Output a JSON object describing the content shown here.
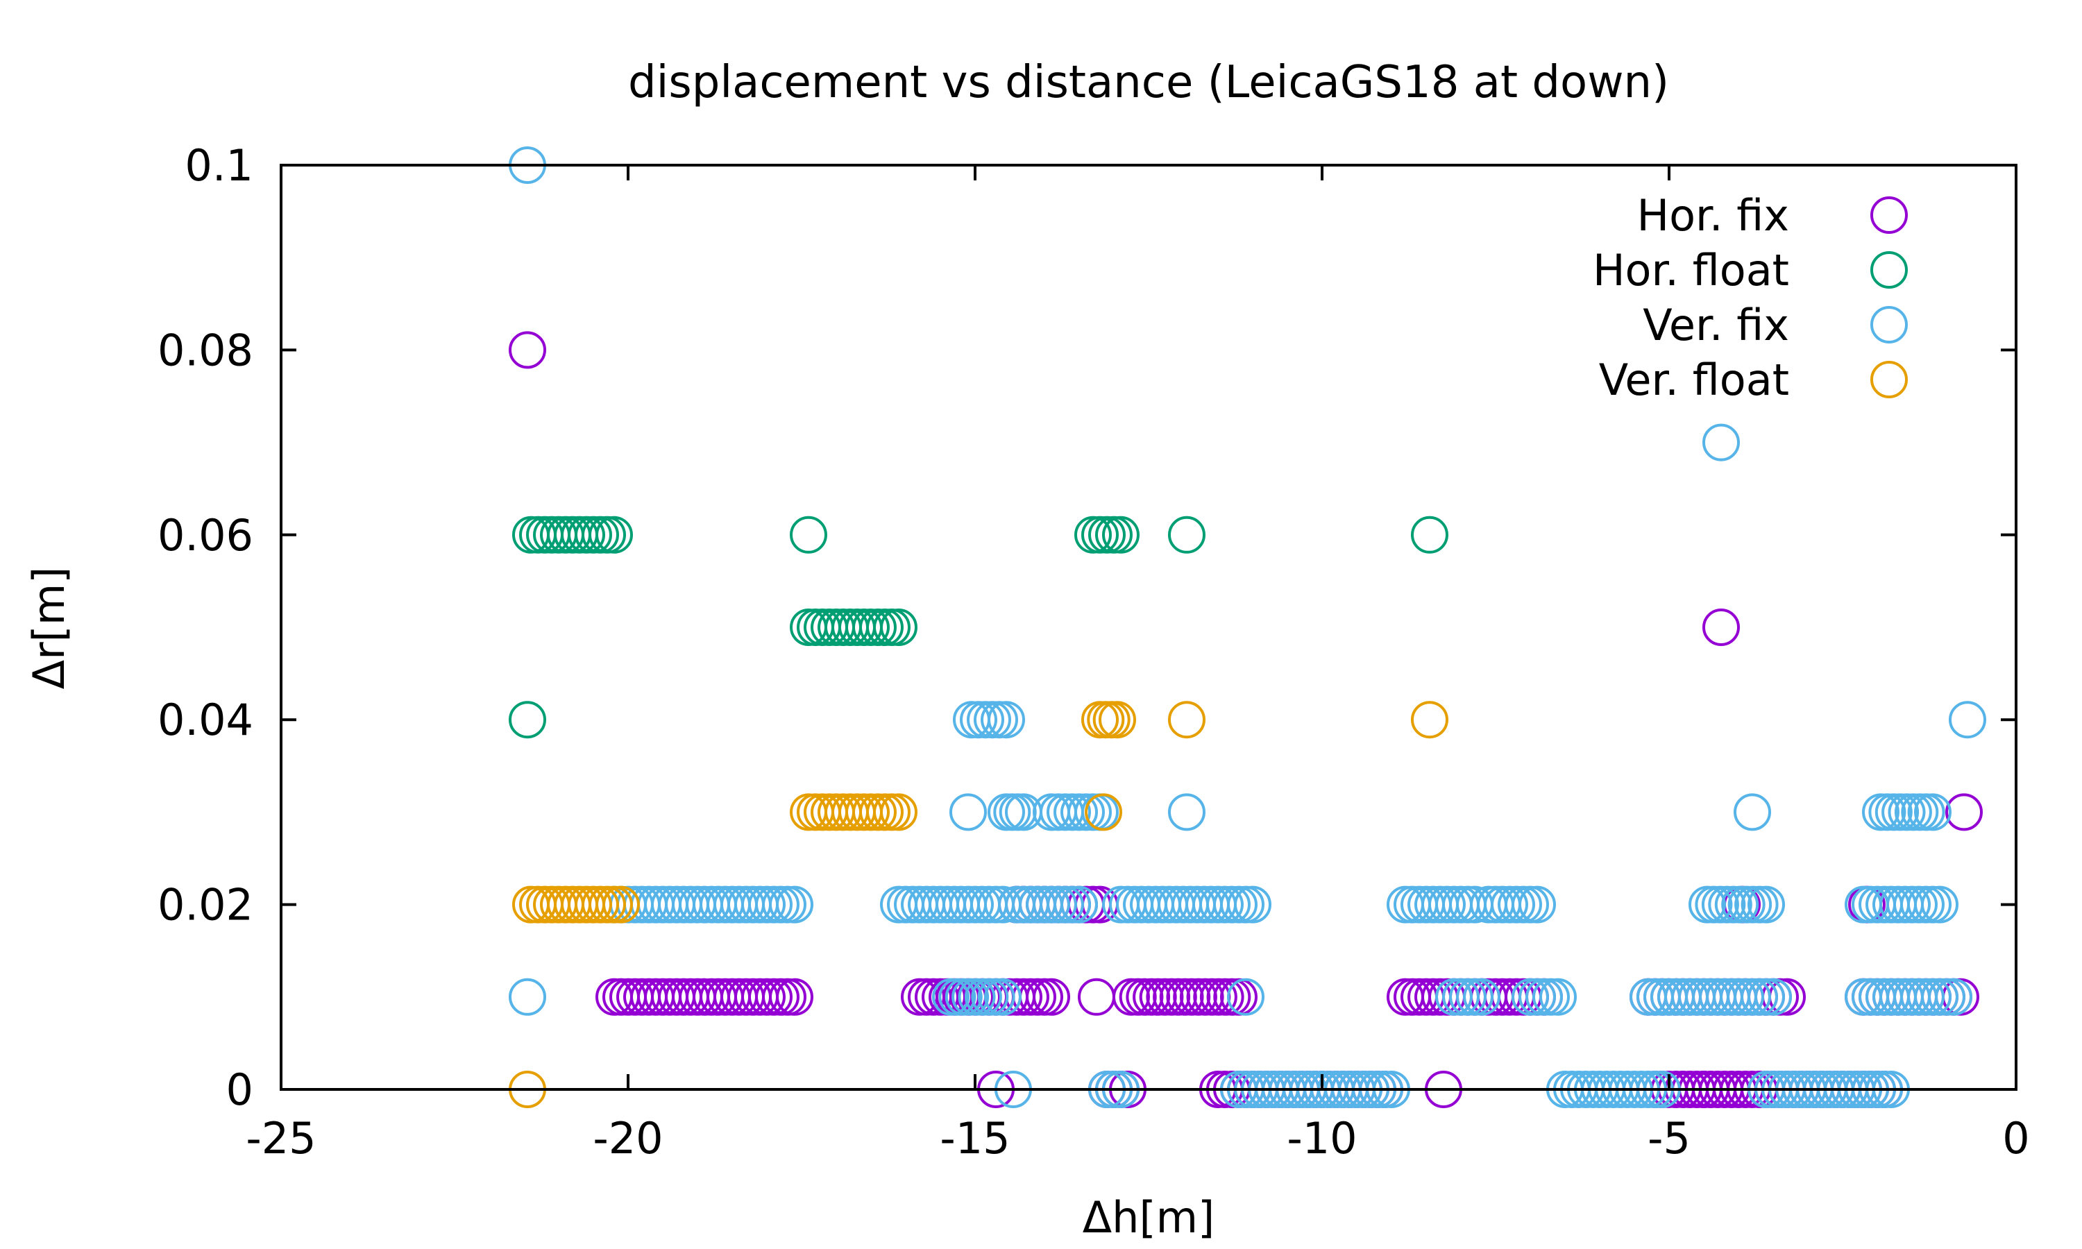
{
  "chart_data": {
    "type": "scatter",
    "title": "displacement vs distance (LeicaGS18 at down)",
    "xlabel": "Δh[m]",
    "ylabel": "Δr[m]",
    "xlim": [
      -25,
      0
    ],
    "ylim": [
      0,
      0.1
    ],
    "xticks": [
      -25,
      -20,
      -15,
      -10,
      -5,
      0
    ],
    "xtick_labels": [
      "-25",
      "-20",
      "-15",
      "-10",
      "-5",
      "0"
    ],
    "yticks": [
      0,
      0.02,
      0.04,
      0.06,
      0.08,
      0.1
    ],
    "ytick_labels": [
      "0",
      "0.02",
      "0.04",
      "0.06",
      "0.08",
      "0.1"
    ],
    "grid": false,
    "legend": "top-right",
    "marker": "open-circle",
    "series": [
      {
        "name": "Hor. fix",
        "color": "#9400d3",
        "segments": [
          {
            "y": 0.08,
            "x_from": -21.45,
            "x_to": -21.45
          },
          {
            "y": 0.05,
            "x_from": -4.25,
            "x_to": -4.25
          },
          {
            "y": 0.03,
            "x_from": -0.75,
            "x_to": -0.75
          },
          {
            "y": 0.02,
            "x_from": -14.4,
            "x_to": -13.2
          },
          {
            "y": 0.02,
            "x_from": -3.95,
            "x_to": -3.95
          },
          {
            "y": 0.02,
            "x_from": -2.15,
            "x_to": -2.15
          },
          {
            "y": 0.01,
            "x_from": -20.2,
            "x_to": -17.6
          },
          {
            "y": 0.01,
            "x_from": -15.8,
            "x_to": -13.9
          },
          {
            "y": 0.01,
            "x_from": -13.25,
            "x_to": -13.25
          },
          {
            "y": 0.01,
            "x_from": -12.75,
            "x_to": -11.2
          },
          {
            "y": 0.01,
            "x_from": -8.8,
            "x_to": -6.8
          },
          {
            "y": 0.01,
            "x_from": -5.3,
            "x_to": -3.3
          },
          {
            "y": 0.01,
            "x_from": -2.2,
            "x_to": -0.8
          },
          {
            "y": 0,
            "x_from": -14.7,
            "x_to": -14.7
          },
          {
            "y": 0,
            "x_from": -13.1,
            "x_to": -12.8
          },
          {
            "y": 0,
            "x_from": -11.5,
            "x_to": -9.1
          },
          {
            "y": 0,
            "x_from": -8.25,
            "x_to": -8.25
          },
          {
            "y": 0,
            "x_from": -5.2,
            "x_to": -4.5
          },
          {
            "y": 0,
            "x_from": -4.5,
            "x_to": -1.9
          }
        ]
      },
      {
        "name": "Hor. float",
        "color": "#009e73",
        "segments": [
          {
            "y": 0.06,
            "x_from": -21.4,
            "x_to": -20.2
          },
          {
            "y": 0.06,
            "x_from": -17.4,
            "x_to": -17.4
          },
          {
            "y": 0.06,
            "x_from": -13.3,
            "x_to": -12.9
          },
          {
            "y": 0.06,
            "x_from": -11.95,
            "x_to": -11.95
          },
          {
            "y": 0.06,
            "x_from": -8.45,
            "x_to": -8.45
          },
          {
            "y": 0.05,
            "x_from": -17.4,
            "x_to": -16.1
          },
          {
            "y": 0.04,
            "x_from": -21.45,
            "x_to": -21.45
          }
        ]
      },
      {
        "name": "Ver. fix",
        "color": "#56b4e9",
        "segments": [
          {
            "y": 0.1,
            "x_from": -21.45,
            "x_to": -21.45
          },
          {
            "y": 0.07,
            "x_from": -4.25,
            "x_to": -4.25
          },
          {
            "y": 0.04,
            "x_from": -15.05,
            "x_to": -14.55
          },
          {
            "y": 0.04,
            "x_from": -0.7,
            "x_to": -0.7
          },
          {
            "y": 0.03,
            "x_from": -15.1,
            "x_to": -15.1
          },
          {
            "y": 0.03,
            "x_from": -14.55,
            "x_to": -14.3
          },
          {
            "y": 0.03,
            "x_from": -13.9,
            "x_to": -13.2
          },
          {
            "y": 0.03,
            "x_from": -11.95,
            "x_to": -11.95
          },
          {
            "y": 0.03,
            "x_from": -3.8,
            "x_to": -3.8
          },
          {
            "y": 0.03,
            "x_from": -1.95,
            "x_to": -1.2
          },
          {
            "y": 0.02,
            "x_from": -20.2,
            "x_to": -17.6
          },
          {
            "y": 0.02,
            "x_from": -16.1,
            "x_to": -14.6
          },
          {
            "y": 0.02,
            "x_from": -14.4,
            "x_to": -13.5
          },
          {
            "y": 0.02,
            "x_from": -12.9,
            "x_to": -11.0
          },
          {
            "y": 0.02,
            "x_from": -8.8,
            "x_to": -7.8
          },
          {
            "y": 0.02,
            "x_from": -7.6,
            "x_to": -6.9
          },
          {
            "y": 0.02,
            "x_from": -4.45,
            "x_to": -3.6
          },
          {
            "y": 0.02,
            "x_from": -2.2,
            "x_to": -1.1
          },
          {
            "y": 0.01,
            "x_from": -21.45,
            "x_to": -21.45
          },
          {
            "y": 0.01,
            "x_from": -15.35,
            "x_to": -14.6
          },
          {
            "y": 0.01,
            "x_from": -11.1,
            "x_to": -11.1
          },
          {
            "y": 0.01,
            "x_from": -8.1,
            "x_to": -7.7
          },
          {
            "y": 0.01,
            "x_from": -7.0,
            "x_to": -6.6
          },
          {
            "y": 0.01,
            "x_from": -5.3,
            "x_to": -3.5
          },
          {
            "y": 0.01,
            "x_from": -2.2,
            "x_to": -0.9
          },
          {
            "y": 0,
            "x_from": -14.45,
            "x_to": -14.45
          },
          {
            "y": 0,
            "x_from": -13.1,
            "x_to": -12.9
          },
          {
            "y": 0,
            "x_from": -11.2,
            "x_to": -9.0
          },
          {
            "y": 0,
            "x_from": -6.5,
            "x_to": -5.1
          },
          {
            "y": 0,
            "x_from": -3.6,
            "x_to": -1.8
          }
        ]
      },
      {
        "name": "Ver. float",
        "color": "#e69f00",
        "segments": [
          {
            "y": 0.04,
            "x_from": -13.2,
            "x_to": -12.95
          },
          {
            "y": 0.04,
            "x_from": -11.95,
            "x_to": -11.95
          },
          {
            "y": 0.04,
            "x_from": -8.45,
            "x_to": -8.45
          },
          {
            "y": 0.03,
            "x_from": -17.4,
            "x_to": -16.1
          },
          {
            "y": 0.03,
            "x_from": -13.15,
            "x_to": -13.15
          },
          {
            "y": 0.02,
            "x_from": -21.4,
            "x_to": -20.1
          },
          {
            "y": 0,
            "x_from": -21.45,
            "x_to": -21.45
          }
        ]
      }
    ]
  }
}
